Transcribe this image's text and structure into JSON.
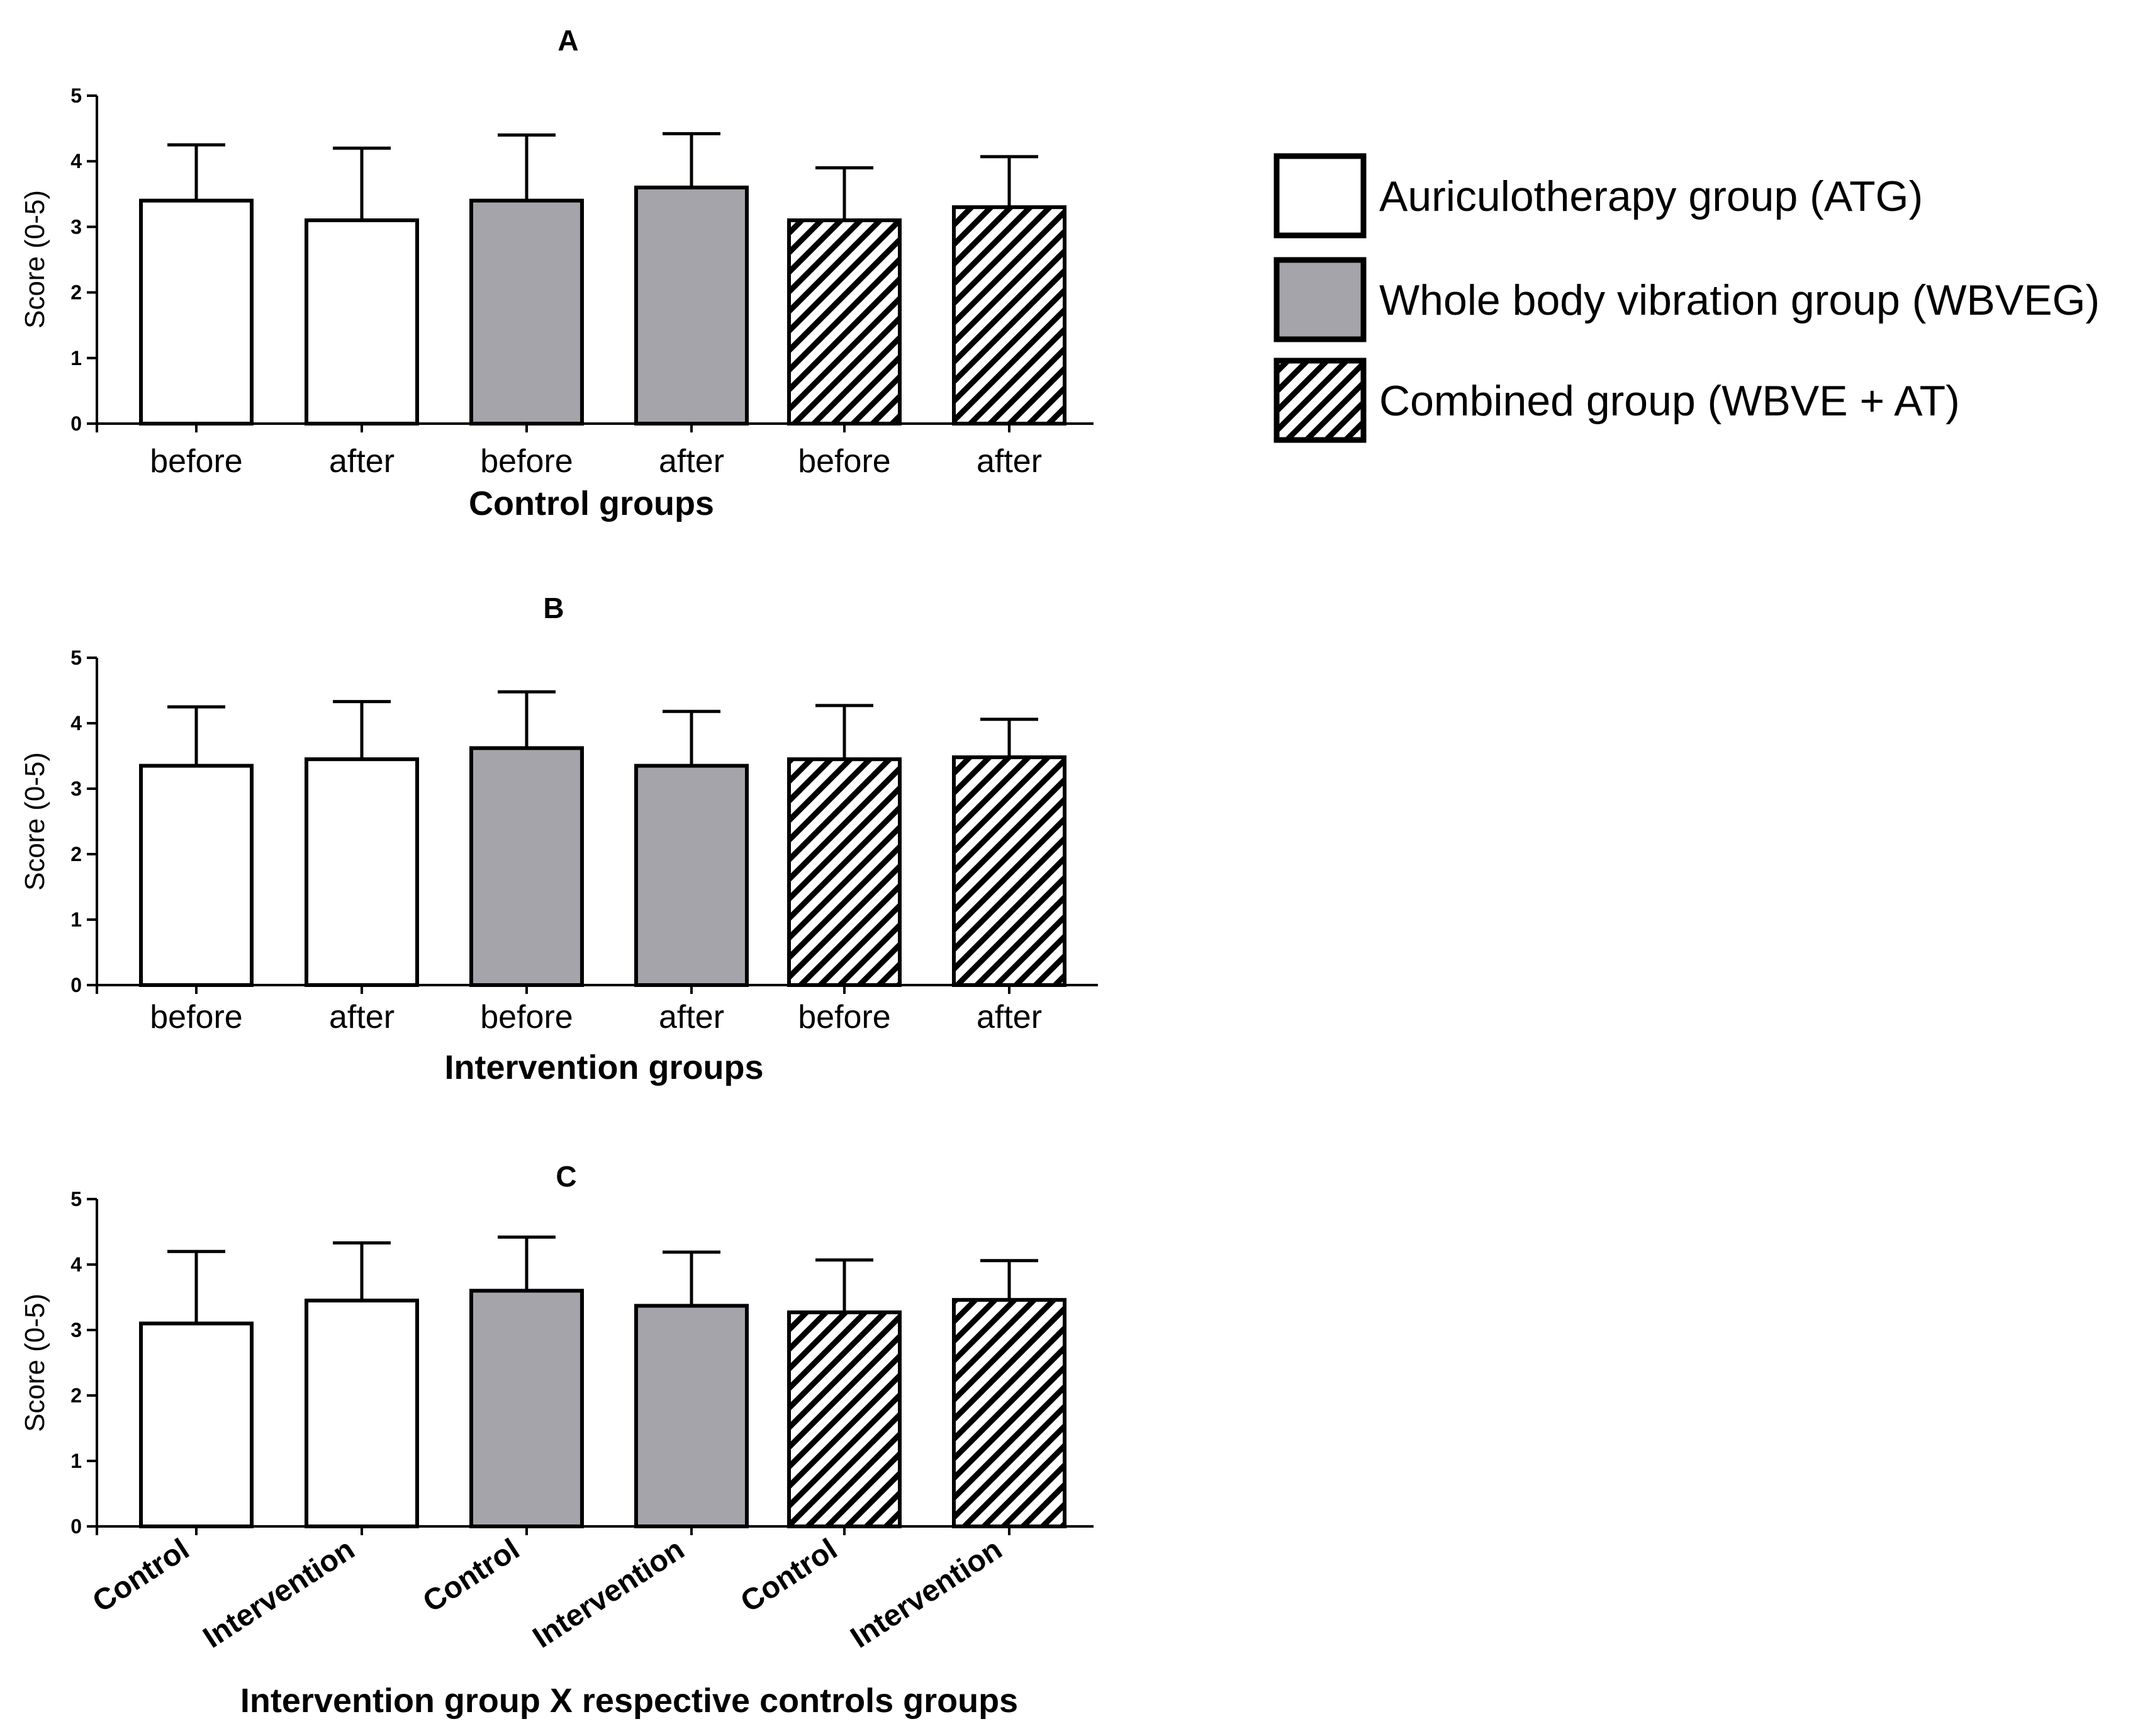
{
  "legend": [
    {
      "label": "Auriculotherapy group (ATG)",
      "fill": "white"
    },
    {
      "label": "Whole body vibration group (WBVEG)",
      "fill": "gray"
    },
    {
      "label": "Combined group (WBVE + AT)",
      "fill": "hatch"
    }
  ],
  "colors": {
    "gray": "#a5a4aa",
    "white": "#ffffff",
    "stroke": "#000000"
  },
  "chart_data": [
    {
      "type": "bar",
      "title": "A",
      "xlabel": "Control groups",
      "ylabel": "Score (0-5)",
      "ylim": [
        0,
        5
      ],
      "yticks": [
        "0",
        "1",
        "2",
        "3",
        "4",
        "5"
      ],
      "categories": [
        "before",
        "after",
        "before",
        "after",
        "before",
        "after"
      ],
      "fills": [
        "white",
        "white",
        "gray",
        "gray",
        "hatch",
        "hatch"
      ],
      "values": [
        3.4,
        3.1,
        3.4,
        3.6,
        3.1,
        3.3
      ],
      "errors": [
        0.85,
        1.1,
        1.0,
        0.82,
        0.8,
        0.77
      ]
    },
    {
      "type": "bar",
      "title": "B",
      "xlabel": "Intervention groups",
      "ylabel": "Score (0-5)",
      "ylim": [
        0,
        5
      ],
      "yticks": [
        "0",
        "1",
        "2",
        "3",
        "4",
        "5"
      ],
      "categories": [
        "before",
        "after",
        "before",
        "after",
        "before",
        "after"
      ],
      "fills": [
        "white",
        "white",
        "gray",
        "gray",
        "hatch",
        "hatch"
      ],
      "values": [
        3.35,
        3.45,
        3.62,
        3.35,
        3.45,
        3.48
      ],
      "errors": [
        0.9,
        0.88,
        0.86,
        0.83,
        0.82,
        0.58
      ]
    },
    {
      "type": "bar",
      "title": "C",
      "xlabel": "Intervention group X  respective controls groups",
      "ylabel": "Score (0-5)",
      "ylim": [
        0,
        5
      ],
      "yticks": [
        "0",
        "1",
        "2",
        "3",
        "4",
        "5"
      ],
      "categories": [
        "Control",
        "Intervention",
        "Control",
        "Intervention",
        "Control",
        "Intervention"
      ],
      "rotated_labels": true,
      "fills": [
        "white",
        "white",
        "gray",
        "gray",
        "hatch",
        "hatch"
      ],
      "values": [
        3.1,
        3.45,
        3.6,
        3.37,
        3.27,
        3.46
      ],
      "errors": [
        1.1,
        0.88,
        0.82,
        0.82,
        0.8,
        0.6
      ]
    }
  ]
}
